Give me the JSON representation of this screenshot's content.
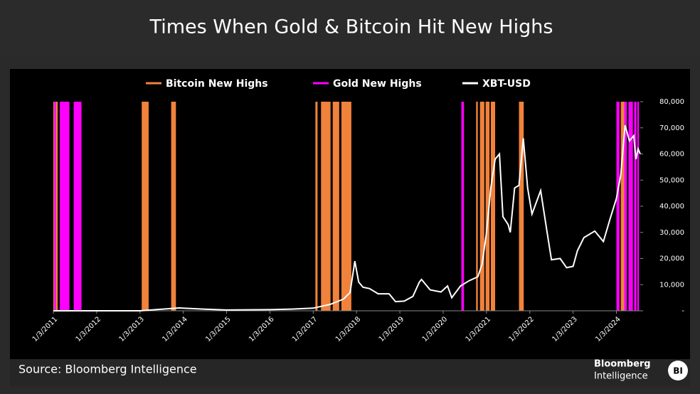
{
  "chart_data": {
    "type": "line",
    "title": "Times When Gold & Bitcoin Hit New Highs",
    "source": "Source: Bloomberg Intelligence",
    "logo": {
      "line1": "Bloomberg",
      "line2": "Intelligence",
      "badge": "BI"
    },
    "xlim": [
      2011.0,
      2024.55
    ],
    "xticks": [
      {
        "value": 2011,
        "label": "1/3/2011"
      },
      {
        "value": 2012,
        "label": "1/3/2012"
      },
      {
        "value": 2013,
        "label": "1/3/2013"
      },
      {
        "value": 2014,
        "label": "1/3/2014"
      },
      {
        "value": 2015,
        "label": "1/3/2015"
      },
      {
        "value": 2016,
        "label": "1/3/2016"
      },
      {
        "value": 2017,
        "label": "1/3/2017"
      },
      {
        "value": 2018,
        "label": "1/3/2018"
      },
      {
        "value": 2019,
        "label": "1/3/2019"
      },
      {
        "value": 2020,
        "label": "1/3/2020"
      },
      {
        "value": 2021,
        "label": "1/3/2021"
      },
      {
        "value": 2022,
        "label": "1/3/2022"
      },
      {
        "value": 2023,
        "label": "1/3/2023"
      },
      {
        "value": 2024,
        "label": "1/3/2024"
      }
    ],
    "ylim": [
      0,
      80000
    ],
    "yticks": [
      {
        "value": 0,
        "label": "-"
      },
      {
        "value": 10000,
        "label": "10,000"
      },
      {
        "value": 20000,
        "label": "20,000"
      },
      {
        "value": 30000,
        "label": "30,000"
      },
      {
        "value": 40000,
        "label": "40,000"
      },
      {
        "value": 50000,
        "label": "50,000"
      },
      {
        "value": 60000,
        "label": "60,000"
      },
      {
        "value": 70000,
        "label": "70,000"
      },
      {
        "value": 80000,
        "label": "80,000"
      }
    ],
    "x": [
      2011.0,
      2013.0,
      2013.9,
      2014.5,
      2015.0,
      2016.0,
      2016.5,
      2017.0,
      2017.4,
      2017.7,
      2017.85,
      2017.96,
      2018.05,
      2018.15,
      2018.3,
      2018.5,
      2018.75,
      2018.9,
      2019.1,
      2019.3,
      2019.45,
      2019.5,
      2019.7,
      2019.95,
      2020.1,
      2020.2,
      2020.4,
      2020.6,
      2020.8,
      2020.9,
      2021.0,
      2021.1,
      2021.2,
      2021.3,
      2021.38,
      2021.5,
      2021.55,
      2021.65,
      2021.75,
      2021.85,
      2021.95,
      2022.05,
      2022.25,
      2022.4,
      2022.5,
      2022.7,
      2022.85,
      2023.0,
      2023.1,
      2023.25,
      2023.5,
      2023.7,
      2023.85,
      2024.0,
      2024.1,
      2024.2,
      2024.3,
      2024.4,
      2024.45,
      2024.5,
      2024.55
    ],
    "series": [
      {
        "name": "Bitcoin New Highs",
        "color": "#f0823c",
        "bands": [
          [
            2011.0,
            2011.1
          ],
          [
            2013.04,
            2013.2
          ],
          [
            2013.72,
            2013.83
          ],
          [
            2017.05,
            2017.1
          ],
          [
            2017.18,
            2017.4
          ],
          [
            2017.45,
            2017.6
          ],
          [
            2017.65,
            2017.88
          ],
          [
            2020.76,
            2020.8
          ],
          [
            2020.85,
            2020.95
          ],
          [
            2020.98,
            2021.07
          ],
          [
            2021.1,
            2021.2
          ],
          [
            2021.75,
            2021.86
          ],
          [
            2024.1,
            2024.2
          ]
        ]
      },
      {
        "name": "Gold New Highs",
        "color": "#ff00ff",
        "bands": [
          [
            2011.02,
            2011.06
          ],
          [
            2011.15,
            2011.37
          ],
          [
            2011.47,
            2011.65
          ],
          [
            2020.42,
            2020.48
          ],
          [
            2024.0,
            2024.07
          ],
          [
            2024.18,
            2024.24
          ],
          [
            2024.28,
            2024.38
          ],
          [
            2024.41,
            2024.46
          ],
          [
            2024.48,
            2024.52
          ]
        ]
      },
      {
        "name": "XBT-USD",
        "color": "#ffffff",
        "values": [
          0,
          13,
          1100,
          600,
          300,
          430,
          650,
          1000,
          2500,
          4500,
          7000,
          19000,
          11000,
          9000,
          8500,
          6500,
          6500,
          3500,
          3700,
          5500,
          11000,
          12000,
          8000,
          7200,
          9500,
          5000,
          9500,
          11500,
          13000,
          18000,
          30000,
          47000,
          58000,
          60000,
          36000,
          33000,
          30000,
          47000,
          48000,
          66000,
          47000,
          37000,
          46000,
          30000,
          19500,
          20000,
          16500,
          17000,
          23000,
          28000,
          30500,
          26500,
          35000,
          43000,
          52000,
          71000,
          65000,
          67000,
          58000,
          62000,
          60000
        ]
      }
    ]
  }
}
